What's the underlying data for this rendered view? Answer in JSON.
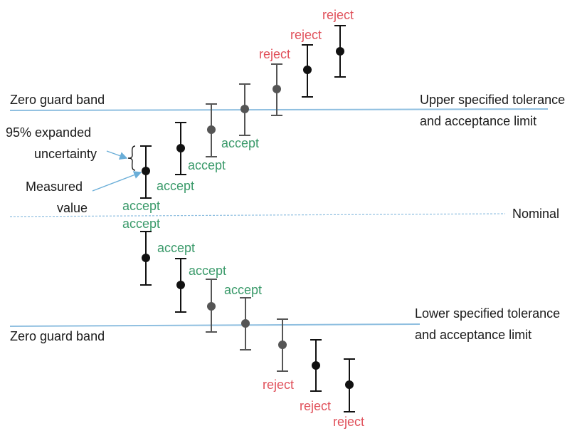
{
  "labels": {
    "upper_guard_band": "Zero guard band",
    "upper_limit_line1": "Upper specified tolerance",
    "upper_limit_line2": "and acceptance limit",
    "expanded_uncertainty_line1": "95% expanded",
    "expanded_uncertainty_line2": "uncertainty",
    "measured_value_line1": "Measured",
    "measured_value_line2": "value",
    "nominal": "Nominal",
    "lower_guard_band": "Zero guard band",
    "lower_limit_line1": "Lower specified tolerance",
    "lower_limit_line2": "and acceptance limit"
  },
  "colors": {
    "accept": "#3a9a6a",
    "reject": "#e0505a",
    "limit_line": "#8fbfe0",
    "nominal_line": "#8fbfe0",
    "marker_dark": "#111111",
    "marker_grey": "#555555",
    "arrow": "#6aaed8"
  },
  "measurements": {
    "upper": [
      {
        "id": 1,
        "decision": "accept",
        "shade": "dark"
      },
      {
        "id": 2,
        "decision": "accept",
        "shade": "dark"
      },
      {
        "id": 3,
        "decision": "accept",
        "shade": "grey"
      },
      {
        "id": 4,
        "decision": "accept",
        "shade": "grey"
      },
      {
        "id": 5,
        "decision": "reject",
        "shade": "grey"
      },
      {
        "id": 6,
        "decision": "reject",
        "shade": "dark"
      },
      {
        "id": 7,
        "decision": "reject",
        "shade": "dark"
      }
    ],
    "lower": [
      {
        "id": 1,
        "decision": "accept",
        "shade": "dark"
      },
      {
        "id": 2,
        "decision": "accept",
        "shade": "dark"
      },
      {
        "id": 3,
        "decision": "accept",
        "shade": "grey"
      },
      {
        "id": 4,
        "decision": "accept",
        "shade": "grey"
      },
      {
        "id": 5,
        "decision": "reject",
        "shade": "grey"
      },
      {
        "id": 6,
        "decision": "reject",
        "shade": "dark"
      },
      {
        "id": 7,
        "decision": "reject",
        "shade": "dark"
      }
    ]
  }
}
